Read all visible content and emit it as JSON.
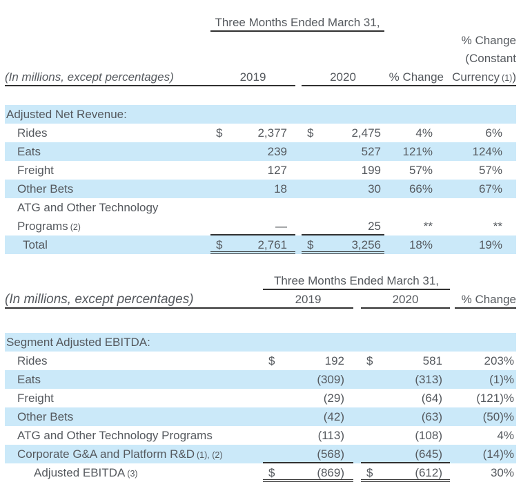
{
  "colors": {
    "row_highlight": "#cbe9f9",
    "text": "#55595e",
    "rule": "#303030"
  },
  "table1": {
    "period_header": "Three Months Ended March 31,",
    "unit_note": "(In millions, except percentages)",
    "col_2019": "2019",
    "col_2020": "2020",
    "col_pct": "% Change",
    "col_pctcc_line1": "% Change",
    "col_pctcc_line2": "(Constant",
    "col_pctcc_line3": "Currency",
    "col_pctcc_fn": "(1)",
    "col_pctcc_close": ")",
    "section_label": "Adjusted Net Revenue:",
    "rows": [
      {
        "label": "Rides",
        "d1": "$",
        "v1": "2,377",
        "d2": "$",
        "v2": "2,475",
        "pct": "4%",
        "pctcc": "6%"
      },
      {
        "label": "Eats",
        "v1": "239",
        "v2": "527",
        "pct": "121%",
        "pctcc": "124%"
      },
      {
        "label": "Freight",
        "v1": "127",
        "v2": "199",
        "pct": "57%",
        "pctcc": "57%"
      },
      {
        "label": "Other Bets",
        "v1": "18",
        "v2": "30",
        "pct": "66%",
        "pctcc": "67%"
      },
      {
        "label": "ATG and Other Technology"
      },
      {
        "label": "Programs",
        "fn": "(2)",
        "v1": "—",
        "v2": "25",
        "pct": "**",
        "pctcc": "**"
      },
      {
        "label": "Total",
        "d1": "$",
        "v1": "2,761",
        "d2": "$",
        "v2": "3,256",
        "pct": "18%",
        "pctcc": "19%"
      }
    ]
  },
  "table2": {
    "period_header": "Three Months Ended March 31,",
    "unit_note": "(In millions, except percentages)",
    "col_2019": "2019",
    "col_2020": "2020",
    "col_pct": "% Change",
    "section_label": "Segment Adjusted EBITDA:",
    "rows": [
      {
        "label": "Rides",
        "d1": "$",
        "v1": "192",
        "d2": "$",
        "v2": "581",
        "pct": "203%"
      },
      {
        "label": "Eats",
        "v1": "(309)",
        "v2": "(313)",
        "pct": "(1)%"
      },
      {
        "label": "Freight",
        "v1": "(29)",
        "v2": "(64)",
        "pct": "(121)%"
      },
      {
        "label": "Other Bets",
        "v1": "(42)",
        "v2": "(63)",
        "pct": "(50)%"
      },
      {
        "label": "ATG and Other Technology Programs",
        "v1": "(113)",
        "v2": "(108)",
        "pct": "4%"
      },
      {
        "label": "Corporate G&A and Platform R&D",
        "fn": "(1), (2)",
        "v1": "(568)",
        "v2": "(645)",
        "pct": "(14)%"
      },
      {
        "label": "Adjusted EBITDA",
        "fn": "(3)",
        "d1": "$",
        "v1": "(869)",
        "d2": "$",
        "v2": "(612)",
        "pct": "30%"
      }
    ]
  }
}
